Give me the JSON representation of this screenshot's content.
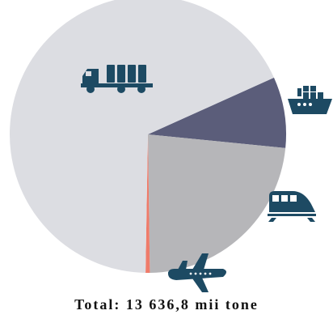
{
  "chart_data": {
    "type": "pie",
    "title": "",
    "categories": [
      "Rutier",
      "Maritim",
      "Feroviar",
      "Aerian"
    ],
    "values": [
      68.0,
      8.3,
      23.2,
      0.5
    ],
    "colors": [
      "#dcdde2",
      "#5b5d7a",
      "#b6b6b9",
      "#ef7b6a"
    ],
    "icons": [
      "truck-icon",
      "ship-icon",
      "train-icon",
      "airplane-icon"
    ],
    "start_angle_deg": 90,
    "direction": "clockwise-from-top",
    "legend": "none"
  },
  "colors": {
    "icon": "#1d4a63"
  },
  "footer": {
    "total_label": "Total:",
    "total_value": "13 636,8",
    "total_unit": "mii tone"
  }
}
